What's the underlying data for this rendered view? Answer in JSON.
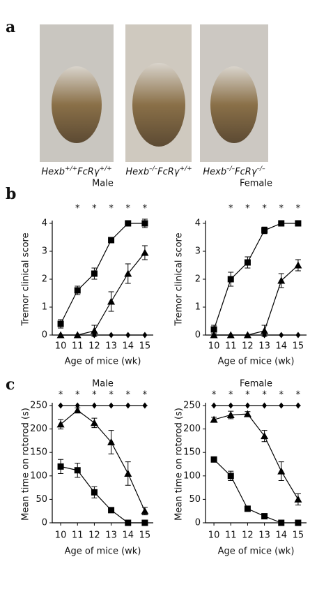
{
  "panel_labels": [
    "a",
    "b",
    "c"
  ],
  "genotypes": [
    {
      "gene1": "Hexb",
      "sup1": "+/+",
      "gene2": "FcRγ",
      "sup2": "+/+"
    },
    {
      "gene1": "Hexb",
      "sup1": "–/–",
      "gene2": "FcRγ",
      "sup2": "+/+"
    },
    {
      "gene1": "Hexb",
      "sup1": "–/–",
      "gene2": "FcRγ",
      "sup2": "–/–"
    }
  ],
  "chart_data": [
    {
      "type": "line",
      "title": "Male",
      "xlabel": "Age of mice (wk)",
      "ylabel": "Tremor clinical score",
      "x": [
        10,
        11,
        12,
        13,
        14,
        15
      ],
      "significance": [
        null,
        "*",
        "*",
        "*",
        "*",
        "*"
      ],
      "xlim": [
        9.5,
        15.5
      ],
      "xticks": [
        10,
        11,
        12,
        13,
        14,
        15
      ],
      "ylim": [
        0,
        4
      ],
      "yticks": [
        0,
        1,
        2,
        3,
        4
      ],
      "series": [
        {
          "marker": "square",
          "color": "#000",
          "values": [
            0.4,
            1.6,
            2.2,
            3.4,
            4.0,
            4.0
          ],
          "errors": [
            0.15,
            0.15,
            0.2,
            0.1,
            0.1,
            0.15
          ]
        },
        {
          "marker": "triangle",
          "color": "#000",
          "values": [
            0,
            0,
            0.15,
            1.2,
            2.2,
            2.95
          ],
          "errors": [
            0,
            0,
            0.2,
            0.35,
            0.35,
            0.25
          ]
        },
        {
          "marker": "diamond",
          "color": "#000",
          "values": [
            0,
            0,
            0,
            0,
            0,
            0
          ],
          "errors": [
            0,
            0,
            0,
            0,
            0,
            0
          ]
        }
      ]
    },
    {
      "type": "line",
      "title": "Female",
      "xlabel": "Age of mice (wk)",
      "ylabel": "Tremor clinical score",
      "x": [
        10,
        11,
        12,
        13,
        14,
        15
      ],
      "significance": [
        null,
        "*",
        "*",
        "*",
        "*",
        "*"
      ],
      "xlim": [
        9.5,
        15.5
      ],
      "xticks": [
        10,
        11,
        12,
        13,
        14,
        15
      ],
      "ylim": [
        0,
        4
      ],
      "yticks": [
        0,
        1,
        2,
        3,
        4
      ],
      "series": [
        {
          "marker": "square",
          "color": "#000",
          "values": [
            0.2,
            2.0,
            2.6,
            3.75,
            4.0,
            4.0
          ],
          "errors": [
            0.15,
            0.25,
            0.2,
            0.12,
            0.05,
            0.05
          ]
        },
        {
          "marker": "triangle",
          "color": "#000",
          "values": [
            0,
            0,
            0,
            0.15,
            1.95,
            2.5
          ],
          "errors": [
            0,
            0,
            0,
            0.2,
            0.25,
            0.2
          ]
        },
        {
          "marker": "diamond",
          "color": "#000",
          "values": [
            0,
            0,
            0,
            0,
            0,
            0
          ],
          "errors": [
            0,
            0,
            0,
            0,
            0,
            0
          ]
        }
      ]
    },
    {
      "type": "line",
      "title": "Male",
      "xlabel": "Age of mice (wk)",
      "ylabel": "Mean time on rotorod (s)",
      "x": [
        10,
        11,
        12,
        13,
        14,
        15
      ],
      "significance": [
        "*",
        "*",
        "*",
        "*",
        "*",
        "*"
      ],
      "xlim": [
        9.5,
        15.5
      ],
      "xticks": [
        10,
        11,
        12,
        13,
        14,
        15
      ],
      "ylim": [
        0,
        250
      ],
      "yticks": [
        0,
        50,
        100,
        150,
        200,
        250
      ],
      "series": [
        {
          "marker": "diamond",
          "color": "#000",
          "values": [
            250,
            250,
            250,
            250,
            250,
            250
          ],
          "errors": [
            0,
            0,
            0,
            0,
            0,
            0
          ]
        },
        {
          "marker": "triangle",
          "color": "#000",
          "values": [
            210,
            240,
            213,
            172,
            105,
            25
          ],
          "errors": [
            10,
            5,
            10,
            25,
            25,
            8
          ]
        },
        {
          "marker": "square",
          "color": "#000",
          "values": [
            120,
            112,
            65,
            27,
            0,
            0
          ],
          "errors": [
            15,
            15,
            12,
            3,
            0,
            0
          ]
        }
      ]
    },
    {
      "type": "line",
      "title": "Female",
      "xlabel": "Age of mice (wk)",
      "ylabel": "Mean time on rotorod (s)",
      "x": [
        10,
        11,
        12,
        13,
        14,
        15
      ],
      "significance": [
        "*",
        "*",
        "*",
        "*",
        "*",
        "*"
      ],
      "xlim": [
        9.5,
        15.5
      ],
      "xticks": [
        10,
        11,
        12,
        13,
        14,
        15
      ],
      "ylim": [
        0,
        250
      ],
      "yticks": [
        0,
        50,
        100,
        150,
        200,
        250
      ],
      "series": [
        {
          "marker": "diamond",
          "color": "#000",
          "values": [
            250,
            250,
            250,
            250,
            250,
            250
          ],
          "errors": [
            0,
            0,
            0,
            0,
            0,
            0
          ]
        },
        {
          "marker": "triangle",
          "color": "#000",
          "values": [
            220,
            230,
            232,
            185,
            110,
            50
          ],
          "errors": [
            5,
            8,
            5,
            12,
            20,
            12
          ]
        },
        {
          "marker": "square",
          "color": "#000",
          "values": [
            135,
            100,
            30,
            14,
            0,
            0
          ],
          "errors": [
            3,
            10,
            4,
            5,
            0,
            0
          ]
        }
      ]
    }
  ]
}
